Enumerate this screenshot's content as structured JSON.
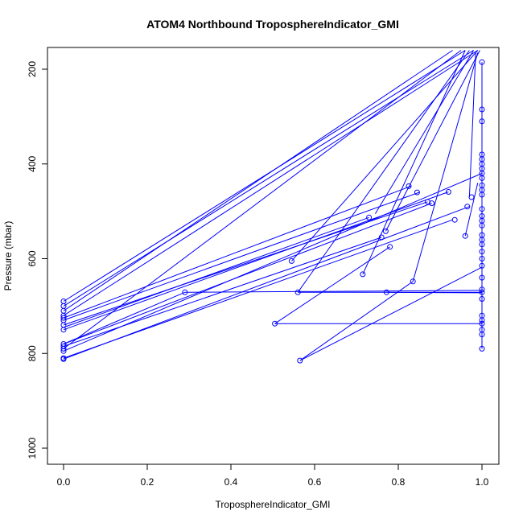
{
  "chart_data": {
    "type": "line",
    "title": "ATOM4 Northbound TroposphereIndicator_GMI",
    "xlabel": "TroposphereIndicator_GMI",
    "ylabel": "Pressure (mbar)",
    "xlim": [
      0.0,
      1.0
    ],
    "ylim": [
      1000,
      200
    ],
    "y_inverted": true,
    "x_ticks": [
      "0.0",
      "0.2",
      "0.4",
      "0.6",
      "0.8",
      "1.0"
    ],
    "y_ticks": [
      "200",
      "400",
      "600",
      "800",
      "1000"
    ],
    "grid": false,
    "legend": "none",
    "color": "#0000ff",
    "series": [
      {
        "points": [
          [
            0.0,
            690
          ],
          [
            0.96,
            160
          ]
        ]
      },
      {
        "points": [
          [
            0.0,
            700
          ],
          [
            0.98,
            160
          ]
        ]
      },
      {
        "points": [
          [
            0.0,
            710
          ],
          [
            0.93,
            160
          ]
        ]
      },
      {
        "points": [
          [
            0.0,
            720
          ],
          [
            0.99,
            160
          ]
        ]
      },
      {
        "points": [
          [
            0.0,
            725
          ],
          [
            0.83,
            447
          ]
        ]
      },
      {
        "points": [
          [
            0.0,
            730
          ],
          [
            0.85,
            460
          ]
        ]
      },
      {
        "points": [
          [
            0.0,
            740
          ],
          [
            0.87,
            480
          ]
        ]
      },
      {
        "points": [
          [
            0.0,
            750
          ],
          [
            0.92,
            459
          ]
        ]
      },
      {
        "points": [
          [
            0.0,
            745
          ],
          [
            0.73,
            513
          ]
        ]
      },
      {
        "points": [
          [
            0.0,
            780
          ],
          [
            0.88,
            483
          ]
        ]
      },
      {
        "points": [
          [
            0.0,
            785
          ],
          [
            0.76,
            555
          ]
        ]
      },
      {
        "points": [
          [
            0.0,
            790
          ],
          [
            0.95,
            160
          ]
        ]
      },
      {
        "points": [
          [
            0.0,
            795
          ],
          [
            1.0,
            420
          ]
        ]
      },
      {
        "points": [
          [
            0.0,
            810
          ],
          [
            0.93,
            518
          ]
        ]
      },
      {
        "points": [
          [
            0.0,
            812
          ],
          [
            0.97,
            490
          ]
        ]
      },
      {
        "points": [
          [
            0.0,
            780
          ],
          [
            0.29,
            671
          ]
        ]
      },
      {
        "points": [
          [
            0.29,
            671
          ],
          [
            1.0,
            667
          ]
        ]
      },
      {
        "points": [
          [
            0.505,
            737
          ],
          [
            1.0,
            737
          ]
        ]
      },
      {
        "points": [
          [
            0.505,
            737
          ],
          [
            0.78,
            575
          ]
        ]
      },
      {
        "points": [
          [
            0.545,
            605
          ],
          [
            0.99,
            160
          ]
        ]
      },
      {
        "points": [
          [
            0.56,
            671
          ],
          [
            1.0,
            671
          ]
        ]
      },
      {
        "points": [
          [
            0.56,
            671
          ],
          [
            0.97,
            160
          ]
        ]
      },
      {
        "points": [
          [
            0.565,
            815
          ],
          [
            0.835,
            648
          ]
        ]
      },
      {
        "points": [
          [
            0.565,
            815
          ],
          [
            1.0,
            618
          ]
        ]
      },
      {
        "points": [
          [
            0.715,
            633
          ],
          [
            0.96,
            160
          ]
        ]
      },
      {
        "points": [
          [
            0.745,
            505
          ],
          [
            0.98,
            160
          ]
        ]
      },
      {
        "points": [
          [
            0.77,
            542
          ],
          [
            0.995,
            160
          ]
        ]
      },
      {
        "points": [
          [
            0.772,
            671
          ],
          [
            1.0,
            672
          ]
        ]
      },
      {
        "points": [
          [
            0.835,
            648
          ],
          [
            0.99,
            165
          ]
        ]
      },
      {
        "points": [
          [
            0.96,
            552
          ],
          [
            0.99,
            440
          ]
        ]
      },
      {
        "points": [
          [
            0.97,
            470
          ],
          [
            0.985,
            165
          ]
        ]
      },
      {
        "points": [
          [
            1.0,
            185
          ],
          [
            1.0,
            790
          ]
        ]
      }
    ],
    "markers": [
      [
        0.0,
        690
      ],
      [
        0.0,
        700
      ],
      [
        0.0,
        710
      ],
      [
        0.0,
        720
      ],
      [
        0.0,
        725
      ],
      [
        0.0,
        730
      ],
      [
        0.0,
        740
      ],
      [
        0.0,
        750
      ],
      [
        0.0,
        780
      ],
      [
        0.0,
        785
      ],
      [
        0.0,
        790
      ],
      [
        0.0,
        795
      ],
      [
        0.0,
        810
      ],
      [
        0.0,
        812
      ],
      [
        0.29,
        671
      ],
      [
        0.505,
        737
      ],
      [
        0.545,
        605
      ],
      [
        0.56,
        671
      ],
      [
        0.565,
        815
      ],
      [
        0.715,
        633
      ],
      [
        0.73,
        513
      ],
      [
        0.76,
        555
      ],
      [
        0.77,
        542
      ],
      [
        0.772,
        671
      ],
      [
        0.78,
        575
      ],
      [
        0.825,
        447
      ],
      [
        0.835,
        648
      ],
      [
        0.845,
        460
      ],
      [
        0.87,
        480
      ],
      [
        0.88,
        483
      ],
      [
        0.92,
        459
      ],
      [
        0.935,
        518
      ],
      [
        0.96,
        552
      ],
      [
        0.965,
        490
      ],
      [
        0.975,
        470
      ],
      [
        1.0,
        185
      ],
      [
        1.0,
        285
      ],
      [
        1.0,
        310
      ],
      [
        1.0,
        380
      ],
      [
        1.0,
        390
      ],
      [
        1.0,
        400
      ],
      [
        1.0,
        410
      ],
      [
        1.0,
        420
      ],
      [
        1.0,
        430
      ],
      [
        1.0,
        445
      ],
      [
        1.0,
        455
      ],
      [
        1.0,
        465
      ],
      [
        1.0,
        495
      ],
      [
        1.0,
        510
      ],
      [
        1.0,
        520
      ],
      [
        1.0,
        530
      ],
      [
        1.0,
        550
      ],
      [
        1.0,
        560
      ],
      [
        1.0,
        570
      ],
      [
        1.0,
        585
      ],
      [
        1.0,
        600
      ],
      [
        1.0,
        615
      ],
      [
        1.0,
        640
      ],
      [
        1.0,
        665
      ],
      [
        1.0,
        671
      ],
      [
        1.0,
        685
      ],
      [
        1.0,
        720
      ],
      [
        1.0,
        730
      ],
      [
        1.0,
        737
      ],
      [
        1.0,
        750
      ],
      [
        1.0,
        760
      ],
      [
        1.0,
        790
      ]
    ]
  }
}
